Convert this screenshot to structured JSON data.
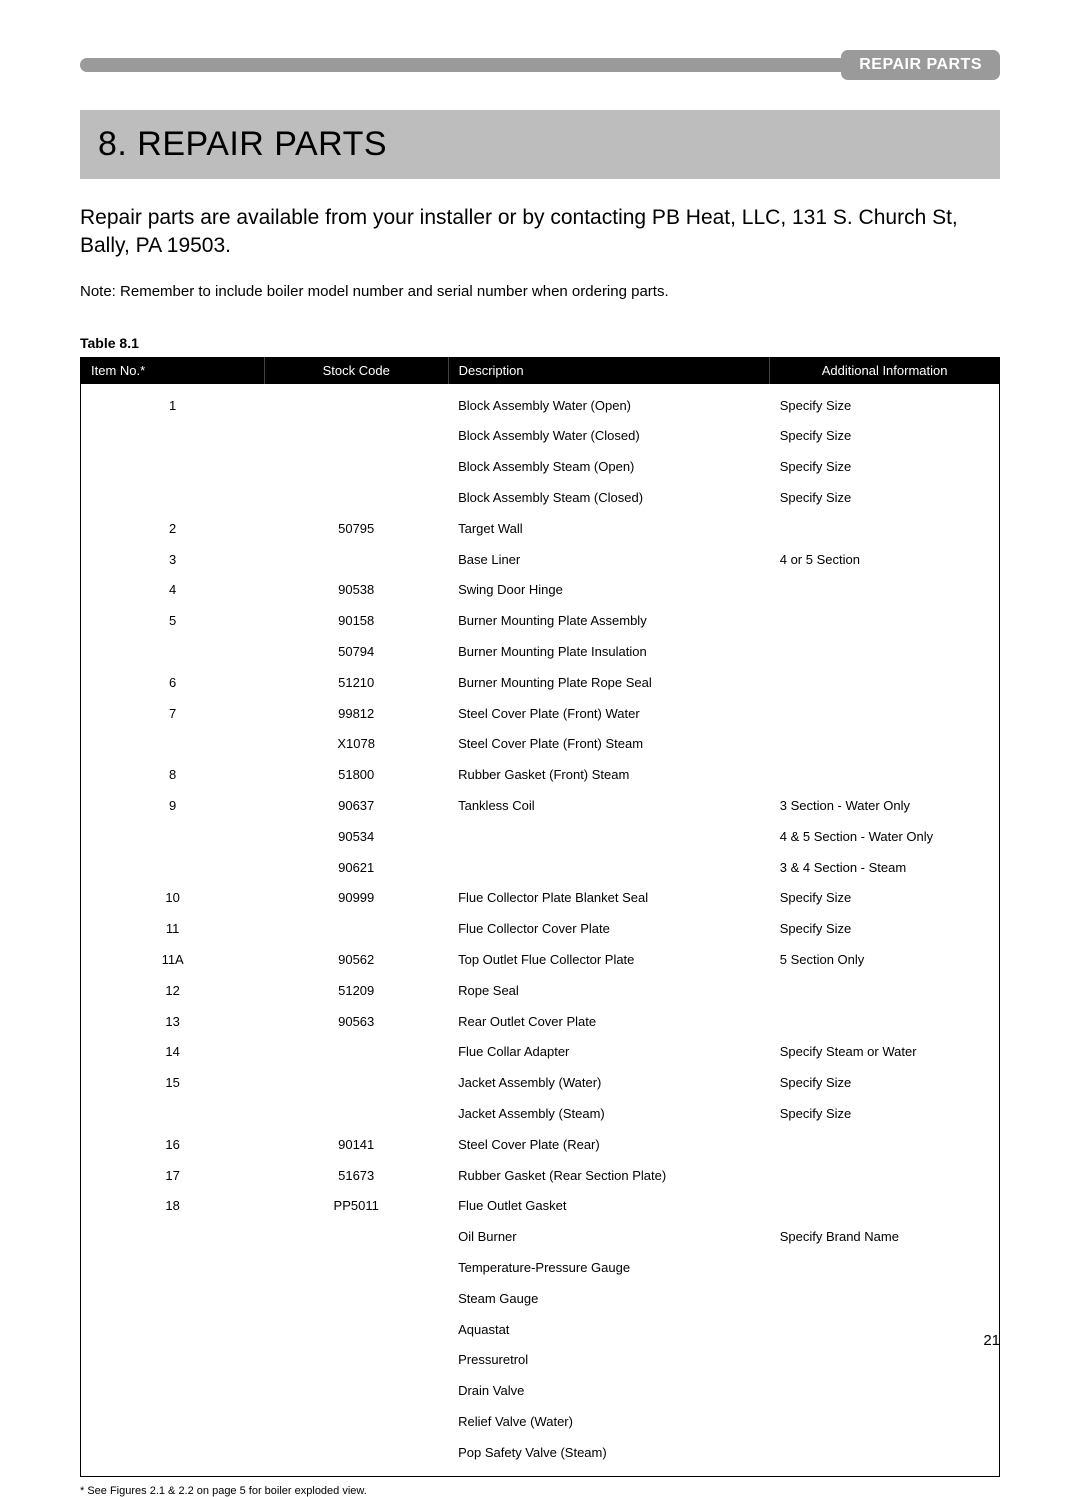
{
  "header": {
    "tab_label": "REPAIR PARTS"
  },
  "section": {
    "title": "8. REPAIR PARTS",
    "intro": "Repair parts are available from your installer or by contacting PB Heat, LLC, 131 S. Church St, Bally, PA 19503.",
    "note": "Note: Remember to include boiler model number and serial number when ordering parts."
  },
  "table": {
    "caption": "Table 8.1",
    "columns": [
      {
        "label": "Item No.*",
        "width": "20%",
        "align": "left"
      },
      {
        "label": "Stock Code",
        "width": "20%",
        "align": "left"
      },
      {
        "label": "Description",
        "width": "35%",
        "align": "left"
      },
      {
        "label": "Additional Information",
        "width": "25%",
        "align": "center"
      }
    ],
    "rows": [
      {
        "item": "1",
        "stock": "",
        "desc": "Block Assembly Water (Open)",
        "add": "Specify Size"
      },
      {
        "item": "",
        "stock": "",
        "desc": "Block Assembly Water (Closed)",
        "add": "Specify Size"
      },
      {
        "item": "",
        "stock": "",
        "desc": "Block Assembly Steam (Open)",
        "add": "Specify Size"
      },
      {
        "item": "",
        "stock": "",
        "desc": "Block Assembly Steam (Closed)",
        "add": "Specify Size"
      },
      {
        "item": "2",
        "stock": "50795",
        "desc": "Target Wall",
        "add": ""
      },
      {
        "item": "3",
        "stock": "",
        "desc": "Base Liner",
        "add": "4 or 5 Section"
      },
      {
        "item": "4",
        "stock": "90538",
        "desc": "Swing Door Hinge",
        "add": ""
      },
      {
        "item": "5",
        "stock": "90158",
        "desc": "Burner Mounting Plate Assembly",
        "add": ""
      },
      {
        "item": "",
        "stock": "50794",
        "desc": "Burner Mounting Plate Insulation",
        "add": ""
      },
      {
        "item": "6",
        "stock": "51210",
        "desc": "Burner Mounting Plate Rope Seal",
        "add": ""
      },
      {
        "item": "7",
        "stock": "99812",
        "desc": "Steel Cover Plate (Front) Water",
        "add": ""
      },
      {
        "item": "",
        "stock": "X1078",
        "desc": "Steel Cover Plate (Front) Steam",
        "add": ""
      },
      {
        "item": "8",
        "stock": "51800",
        "desc": "Rubber Gasket (Front) Steam",
        "add": ""
      },
      {
        "item": "9",
        "stock": "90637",
        "desc": "Tankless Coil",
        "add": "3 Section - Water Only"
      },
      {
        "item": "",
        "stock": "90534",
        "desc": "",
        "add": "4 & 5 Section - Water Only"
      },
      {
        "item": "",
        "stock": "90621",
        "desc": "",
        "add": "3 & 4 Section - Steam"
      },
      {
        "item": "10",
        "stock": "90999",
        "desc": "Flue Collector Plate Blanket Seal",
        "add": "Specify Size"
      },
      {
        "item": "11",
        "stock": "",
        "desc": "Flue Collector Cover Plate",
        "add": "Specify Size"
      },
      {
        "item": "11A",
        "stock": "90562",
        "desc": "Top Outlet Flue Collector Plate",
        "add": "5 Section Only"
      },
      {
        "item": "12",
        "stock": "51209",
        "desc": "Rope Seal",
        "add": ""
      },
      {
        "item": "13",
        "stock": "90563",
        "desc": "Rear Outlet Cover Plate",
        "add": ""
      },
      {
        "item": "14",
        "stock": "",
        "desc": "Flue Collar Adapter",
        "add": "Specify Steam or Water"
      },
      {
        "item": "15",
        "stock": "",
        "desc": "Jacket Assembly (Water)",
        "add": "Specify Size"
      },
      {
        "item": "",
        "stock": "",
        "desc": "Jacket Assembly (Steam)",
        "add": "Specify Size"
      },
      {
        "item": "16",
        "stock": "90141",
        "desc": "Steel Cover Plate (Rear)",
        "add": ""
      },
      {
        "item": "17",
        "stock": "51673",
        "desc": "Rubber Gasket (Rear Section Plate)",
        "add": ""
      },
      {
        "item": "18",
        "stock": "PP5011",
        "desc": "Flue Outlet Gasket",
        "add": ""
      },
      {
        "item": "",
        "stock": "",
        "desc": "Oil Burner",
        "add": "Specify Brand Name"
      },
      {
        "item": "",
        "stock": "",
        "desc": "Temperature-Pressure Gauge",
        "add": ""
      },
      {
        "item": "",
        "stock": "",
        "desc": "Steam Gauge",
        "add": ""
      },
      {
        "item": "",
        "stock": "",
        "desc": "Aquastat",
        "add": ""
      },
      {
        "item": "",
        "stock": "",
        "desc": "Pressuretrol",
        "add": ""
      },
      {
        "item": "",
        "stock": "",
        "desc": "Drain Valve",
        "add": ""
      },
      {
        "item": "",
        "stock": "",
        "desc": "Relief Valve (Water)",
        "add": ""
      },
      {
        "item": "",
        "stock": "",
        "desc": "Pop Safety Valve (Steam)",
        "add": ""
      }
    ],
    "footnote": "*  See Figures 2.1 & 2.2 on page 5 for boiler exploded view."
  },
  "page_number": "21",
  "colors": {
    "header_gray": "#9a9a9a",
    "title_bar_gray": "#bdbdbd",
    "black": "#000000",
    "white": "#ffffff"
  }
}
